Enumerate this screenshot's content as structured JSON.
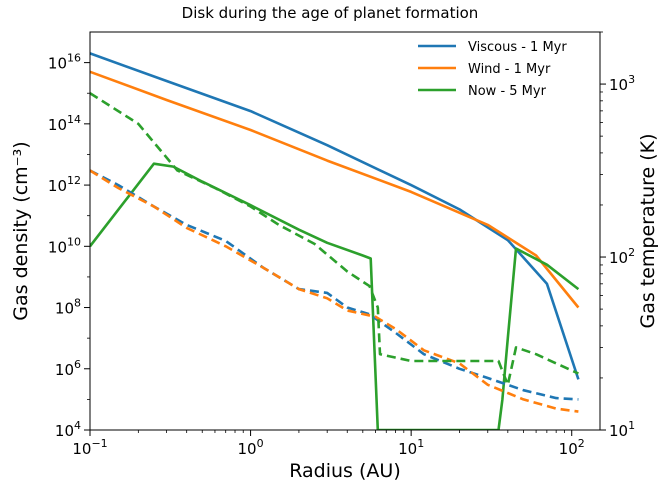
{
  "chart_data": {
    "type": "line",
    "title": "Disk during the age of planet formation",
    "xlabel": "Radius (AU)",
    "ylabel_left": "Gas density (cm⁻³)",
    "ylabel_right": "Gas temperature (K)",
    "x_scale": "log",
    "y_left_scale": "log",
    "y_right_scale": "log",
    "xlim": [
      0.1,
      150
    ],
    "ylim_left": [
      10000.0,
      1e+17
    ],
    "ylim_right": [
      10,
      2000
    ],
    "x_ticks": [
      {
        "value": 0.1,
        "base": "10",
        "exp": "−1"
      },
      {
        "value": 1,
        "base": "10",
        "exp": "0"
      },
      {
        "value": 10,
        "base": "10",
        "exp": "1"
      },
      {
        "value": 100,
        "base": "10",
        "exp": "2"
      }
    ],
    "y_left_ticks": [
      {
        "value": 10000.0,
        "base": "10",
        "exp": "4"
      },
      {
        "value": 1000000.0,
        "base": "10",
        "exp": "6"
      },
      {
        "value": 100000000.0,
        "base": "10",
        "exp": "8"
      },
      {
        "value": 10000000000.0,
        "base": "10",
        "exp": "10"
      },
      {
        "value": 1000000000000.0,
        "base": "10",
        "exp": "12"
      },
      {
        "value": 100000000000000.0,
        "base": "10",
        "exp": "14"
      },
      {
        "value": 1e+16,
        "base": "10",
        "exp": "16"
      }
    ],
    "y_right_ticks": [
      {
        "value": 10,
        "base": "10",
        "exp": "1"
      },
      {
        "value": 100,
        "base": "10",
        "exp": "2"
      },
      {
        "value": 1000,
        "base": "10",
        "exp": "3"
      }
    ],
    "legend_position": "top-right",
    "grid": false,
    "series": [
      {
        "name": "Viscous - 1 Myr",
        "color": "#1f77b4",
        "axis": "left",
        "style": "solid",
        "legend": true,
        "x": [
          0.1,
          0.3,
          1,
          3,
          10,
          20,
          40,
          70,
          110
        ],
        "y": [
          2e+16,
          2500000000000000.0,
          260000000000000.0,
          20000000000000.0,
          1000000000000.0,
          160000000000.0,
          16000000000.0,
          600000000.0,
          450000.0
        ]
      },
      {
        "name": "Wind - 1 Myr",
        "color": "#ff7f0e",
        "axis": "left",
        "style": "solid",
        "legend": true,
        "x": [
          0.1,
          0.3,
          1,
          3,
          10,
          30,
          60,
          110
        ],
        "y": [
          5000000000000000.0,
          600000000000000.0,
          63000000000000.0,
          6300000000000.0,
          600000000000.0,
          50000000000.0,
          5000000000.0,
          100000000.0
        ]
      },
      {
        "name": "Now - 5 Myr",
        "color": "#2ca02c",
        "axis": "left",
        "style": "solid",
        "legend": true,
        "x": [
          0.1,
          0.25,
          0.33,
          0.5,
          1,
          2,
          3,
          5,
          5.6,
          6.2,
          6.2,
          35,
          37,
          40,
          45,
          70,
          110
        ],
        "y": [
          10000000000.0,
          5000000000000.0,
          4000000000000.0,
          1300000000000.0,
          220000000000.0,
          35000000000.0,
          13000000000.0,
          5000000000.0,
          4000000000.0,
          10000.0,
          10000.0,
          10000.0,
          100000.0,
          10000000.0,
          8500000000.0,
          2500000000.0,
          400000000.0
        ]
      },
      {
        "name": "",
        "color": "#1f77b4",
        "axis": "left",
        "style": "dashed",
        "legend": false,
        "x": [
          0.1,
          0.15,
          0.25,
          0.4,
          0.7,
          1.2,
          2,
          3,
          4,
          5.5,
          8,
          12,
          20,
          30,
          50,
          80,
          110
        ],
        "y": [
          3000000000000.0,
          1000000000000.0,
          200000000000.0,
          50000000000.0,
          15000000000.0,
          2000000000.0,
          400000000.0,
          300000000.0,
          100000000.0,
          60000000.0,
          15000000.0,
          3000000.0,
          1000000.0,
          500000.0,
          200000.0,
          110000.0,
          100000.0
        ]
      },
      {
        "name": "",
        "color": "#ff7f0e",
        "axis": "left",
        "style": "dashed",
        "legend": false,
        "x": [
          0.1,
          0.15,
          0.25,
          0.4,
          0.7,
          1.2,
          2,
          3,
          4,
          6,
          8,
          12,
          20,
          30,
          50,
          80,
          110
        ],
        "y": [
          3000000000000.0,
          800000000000.0,
          200000000000.0,
          40000000000.0,
          10000000000.0,
          2000000000.0,
          400000000.0,
          200000000.0,
          80000000.0,
          50000000.0,
          20000000.0,
          4000000.0,
          1500000.0,
          300000.0,
          100000.0,
          50000.0,
          40000.0
        ]
      },
      {
        "name": "",
        "color": "#2ca02c",
        "axis": "left",
        "style": "dashed",
        "legend": false,
        "x": [
          0.1,
          0.2,
          0.35,
          0.6,
          1,
          1.5,
          2.5,
          4,
          5.5,
          6.2,
          6.4,
          10,
          20,
          35,
          40,
          45,
          60,
          80,
          110
        ],
        "y": [
          1000000000000000.0,
          100000000000000.0,
          3000000000000.0,
          800000000000.0,
          200000000000.0,
          50000000000.0,
          12000000000.0,
          1500000000.0,
          500000000.0,
          100000000.0,
          3000000.0,
          1800000.0,
          1800000.0,
          1800000.0,
          300000.0,
          5000000.0,
          3000000.0,
          1500000.0,
          700000.0
        ]
      }
    ]
  }
}
